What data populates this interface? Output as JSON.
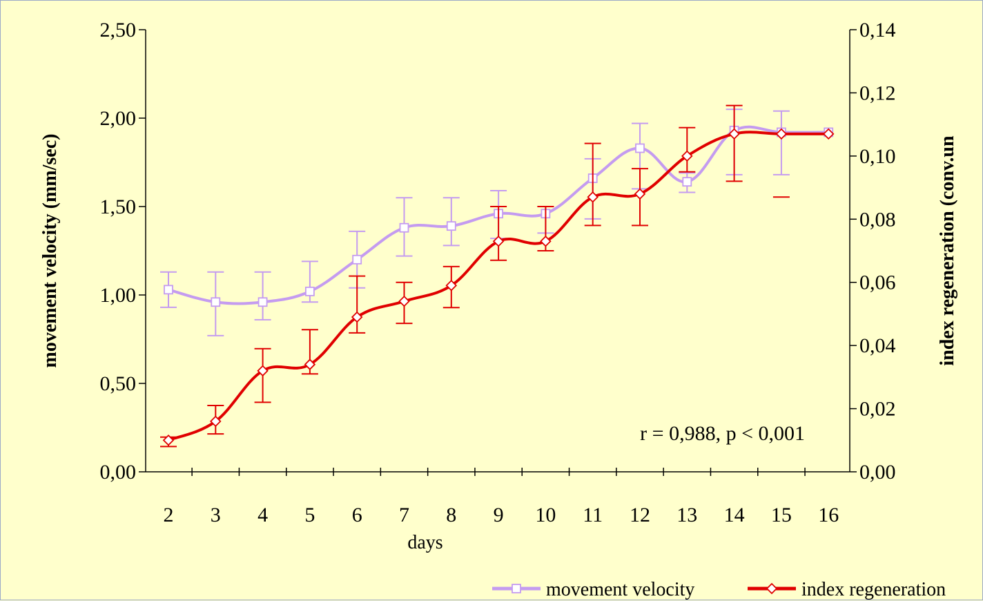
{
  "chart_data": {
    "type": "line",
    "x": [
      2,
      3,
      4,
      5,
      6,
      7,
      8,
      9,
      10,
      11,
      12,
      13,
      14,
      15,
      16
    ],
    "categories": [
      "2",
      "3",
      "4",
      "5",
      "6",
      "7",
      "8",
      "9",
      "10",
      "11",
      "12",
      "13",
      "14",
      "15",
      "16"
    ],
    "xlabel": "days",
    "ylabel_left": "movement velocity (mm/sec)",
    "ylabel_right": "index regeneration (conv.un",
    "ylim_left": [
      0,
      2.5
    ],
    "ylim_right": [
      0,
      0.14
    ],
    "yticks_left": [
      "0,00",
      "0,50",
      "1,00",
      "1,50",
      "2,00",
      "2,50"
    ],
    "yticks_right": [
      "0,00",
      "0,02",
      "0,04",
      "0,06",
      "0,08",
      "0,10",
      "0,12",
      "0,14"
    ],
    "series": [
      {
        "name": "movement velocity",
        "axis": "left",
        "color": "#c49bf0",
        "marker": "square",
        "values": [
          1.03,
          0.96,
          0.96,
          1.02,
          1.2,
          1.38,
          1.39,
          1.46,
          1.46,
          1.66,
          1.83,
          1.64,
          1.93,
          1.92,
          1.92
        ],
        "error_lower": [
          0.93,
          0.77,
          0.86,
          0.96,
          1.04,
          1.22,
          1.28,
          1.32,
          1.35,
          1.43,
          1.6,
          1.58,
          1.68,
          1.68,
          null
        ],
        "error_upper": [
          1.13,
          1.13,
          1.13,
          1.19,
          1.36,
          1.55,
          1.55,
          1.59,
          1.5,
          1.77,
          1.97,
          1.69,
          2.05,
          2.04,
          null
        ]
      },
      {
        "name": "index regeneration",
        "axis": "right",
        "color": "#e00000",
        "marker": "diamond",
        "values": [
          0.01,
          0.016,
          0.032,
          0.034,
          0.049,
          0.054,
          0.059,
          0.073,
          0.073,
          0.087,
          0.088,
          0.1,
          0.107,
          0.107,
          0.107
        ],
        "error_lower": [
          0.008,
          0.012,
          0.022,
          0.031,
          0.044,
          0.047,
          0.052,
          0.067,
          0.07,
          0.078,
          0.078,
          0.095,
          0.092,
          0.087,
          null
        ],
        "error_upper": [
          0.011,
          0.021,
          0.039,
          0.045,
          0.062,
          0.06,
          0.065,
          0.084,
          0.084,
          0.104,
          0.096,
          0.109,
          0.116,
          null,
          null
        ]
      }
    ],
    "annotation": "r = 0,988, p < 0,001",
    "legend": {
      "placement": "bottom-right"
    },
    "grid": false
  }
}
